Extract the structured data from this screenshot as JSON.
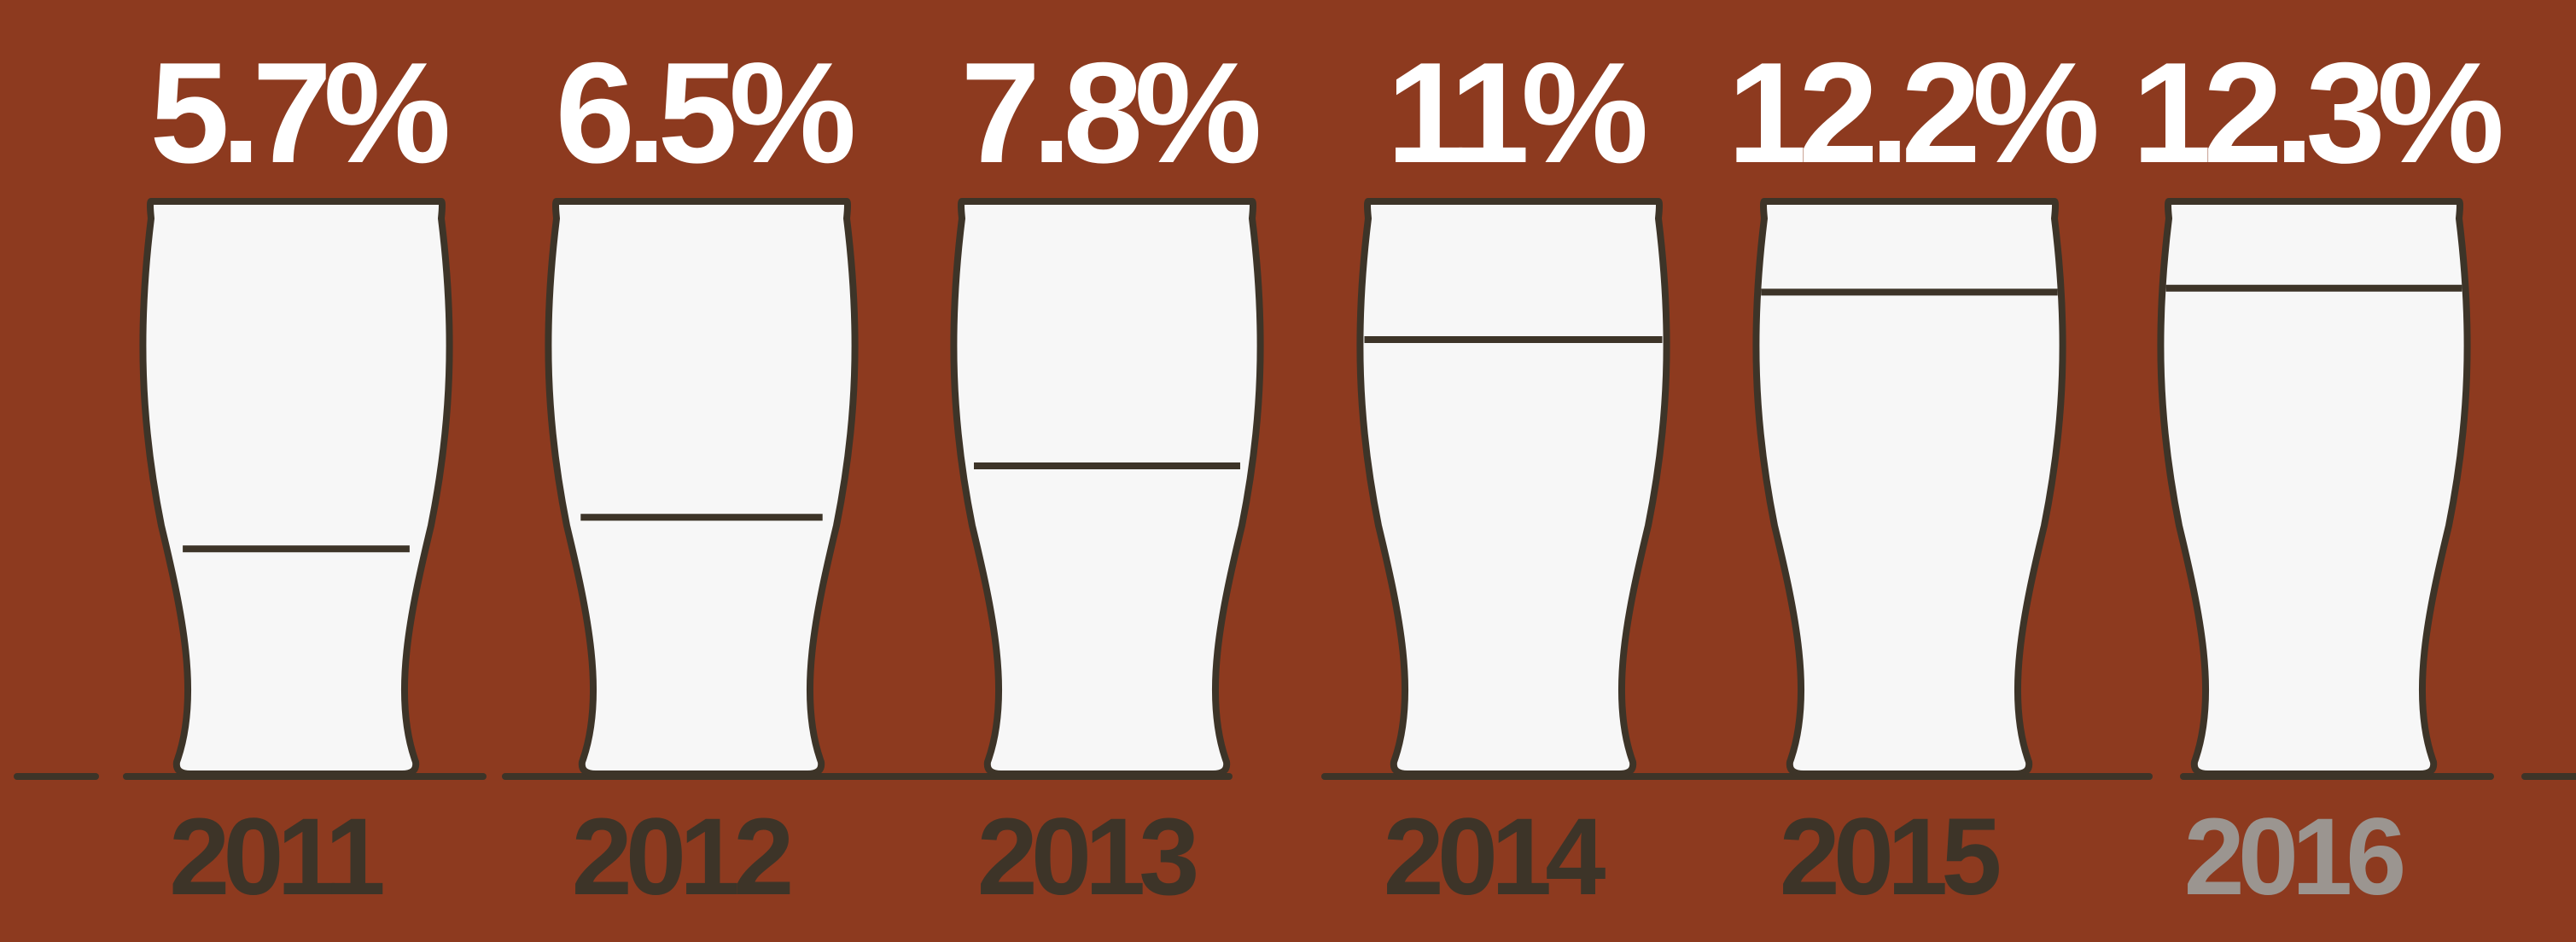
{
  "colors": {
    "background": "#8d3a1f",
    "glass_fill": "#f7f7f7",
    "outline": "#3d3428",
    "label_light": "#ffffff",
    "year_dark": "#3d3428",
    "year_highlight": "#9b9590"
  },
  "chart_data": {
    "type": "bar",
    "categories": [
      "2011",
      "2012",
      "2013",
      "2014",
      "2015",
      "2016"
    ],
    "values": [
      5.7,
      6.5,
      7.8,
      11,
      12.2,
      12.3
    ],
    "value_labels": [
      "5.7%",
      "6.5%",
      "7.8%",
      "11%",
      "12.2%",
      "12.3%"
    ],
    "highlight_category": "2016",
    "ylim": [
      0,
      14.5
    ],
    "xlabel": "",
    "ylabel": "",
    "title": "",
    "grid": false
  }
}
